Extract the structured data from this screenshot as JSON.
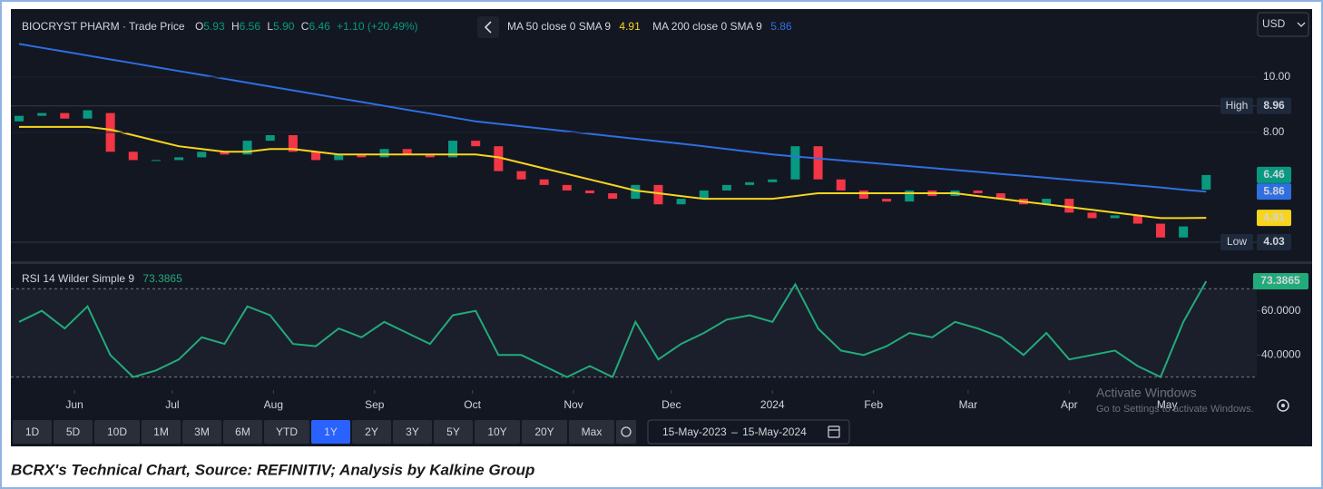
{
  "header": {
    "title": "BIOCRYST PHARM · Trade Price",
    "ohlc": [
      {
        "key": "O",
        "value": "5.93"
      },
      {
        "key": "H",
        "value": "6.56"
      },
      {
        "key": "L",
        "value": "5.90"
      },
      {
        "key": "C",
        "value": "6.46"
      }
    ],
    "change": "+1.10 (+20.49%)"
  },
  "currency": "USD",
  "toolbar": {
    "ranges": [
      "1D",
      "5D",
      "10D",
      "1M",
      "3M",
      "6M",
      "YTD",
      "1Y",
      "2Y",
      "3Y",
      "5Y",
      "10Y",
      "20Y",
      "Max"
    ],
    "active": "1Y",
    "date_from": "15-May-2023",
    "date_sep": "–",
    "date_to": "15-May-2024"
  },
  "watermark": [
    "Activate Windows",
    "Go to Settings to activate Windows."
  ],
  "caption": "BCRX's Technical Chart, Source: REFINITIV; Analysis by Kalkine Group",
  "chart_data": [
    {
      "type": "candlestick",
      "x": [
        0,
        7,
        14,
        21,
        28,
        35,
        42,
        49,
        56,
        63,
        70,
        77,
        84,
        91,
        98,
        105,
        112,
        119,
        126,
        133,
        140,
        147,
        154,
        161,
        168,
        175,
        182,
        189,
        196,
        203,
        210,
        217,
        224,
        231,
        238,
        245,
        252,
        259,
        266,
        273,
        280,
        287,
        294,
        301,
        308,
        315,
        322,
        329,
        336,
        343,
        350,
        357,
        364
      ],
      "open": [
        8.4,
        8.6,
        8.7,
        8.5,
        8.7,
        7.3,
        7.0,
        7.0,
        7.1,
        7.3,
        7.2,
        7.7,
        7.9,
        7.3,
        7.0,
        7.2,
        7.1,
        7.4,
        7.2,
        7.1,
        7.7,
        7.5,
        6.6,
        6.3,
        6.1,
        5.9,
        5.8,
        5.6,
        6.1,
        5.4,
        5.6,
        5.9,
        6.1,
        6.2,
        6.3,
        7.5,
        6.3,
        5.9,
        5.6,
        5.5,
        5.9,
        5.7,
        5.9,
        5.8,
        5.6,
        5.4,
        5.6,
        5.1,
        4.9,
        5.0,
        4.7,
        4.2,
        5.93
      ],
      "close": [
        8.6,
        8.7,
        8.5,
        8.8,
        7.3,
        7.0,
        7.0,
        7.1,
        7.3,
        7.2,
        7.7,
        7.9,
        7.3,
        7.0,
        7.2,
        7.1,
        7.4,
        7.2,
        7.1,
        7.7,
        7.5,
        6.6,
        6.3,
        6.1,
        5.9,
        5.8,
        5.6,
        6.1,
        5.4,
        5.6,
        5.9,
        6.1,
        6.2,
        6.3,
        7.5,
        6.3,
        5.9,
        5.6,
        5.5,
        5.9,
        5.7,
        5.9,
        5.8,
        5.6,
        5.4,
        5.6,
        5.1,
        4.9,
        5.0,
        4.7,
        4.2,
        4.6,
        6.46
      ],
      "up_color": "#089981",
      "down_color": "#f23645",
      "series": [
        {
          "name": "MA 50 close 0 SMA 9",
          "color": "#f7d51d",
          "values": [
            8.2,
            8.2,
            8.2,
            8.2,
            8.1,
            7.9,
            7.7,
            7.5,
            7.4,
            7.3,
            7.3,
            7.4,
            7.4,
            7.3,
            7.2,
            7.2,
            7.2,
            7.2,
            7.2,
            7.2,
            7.2,
            7.1,
            6.9,
            6.7,
            6.5,
            6.3,
            6.1,
            5.9,
            5.8,
            5.7,
            5.6,
            5.6,
            5.6,
            5.6,
            5.7,
            5.8,
            5.8,
            5.8,
            5.8,
            5.8,
            5.8,
            5.8,
            5.7,
            5.6,
            5.5,
            5.4,
            5.3,
            5.2,
            5.1,
            5.0,
            4.9,
            4.9,
            4.91
          ]
        },
        {
          "name": "MA 200 close 0 SMA 9",
          "color": "#2f6fe0",
          "values": [
            11.2,
            11.06,
            10.92,
            10.78,
            10.64,
            10.5,
            10.36,
            10.22,
            10.08,
            9.94,
            9.8,
            9.66,
            9.52,
            9.38,
            9.24,
            9.1,
            8.96,
            8.82,
            8.68,
            8.54,
            8.4,
            8.31,
            8.22,
            8.13,
            8.04,
            7.95,
            7.86,
            7.77,
            7.68,
            7.59,
            7.5,
            7.4,
            7.3,
            7.2,
            7.13,
            7.06,
            6.99,
            6.92,
            6.85,
            6.78,
            6.71,
            6.64,
            6.57,
            6.5,
            6.43,
            6.36,
            6.29,
            6.22,
            6.15,
            6.08,
            6.01,
            5.93,
            5.86
          ]
        }
      ],
      "markers": [
        {
          "label": "High",
          "value": 8.96
        },
        {
          "label": "Low",
          "value": 4.03
        }
      ],
      "xlim": [
        -2.5,
        379.5
      ],
      "ylim": [
        3.34,
        12.46
      ],
      "yticks": [
        {
          "value": 8,
          "label": "8.00"
        },
        {
          "value": 10,
          "label": "10.00"
        }
      ]
    },
    {
      "type": "line",
      "x": [
        0,
        7,
        14,
        21,
        28,
        35,
        42,
        49,
        56,
        63,
        70,
        77,
        84,
        91,
        98,
        105,
        112,
        119,
        126,
        133,
        140,
        147,
        154,
        161,
        168,
        175,
        182,
        189,
        196,
        203,
        210,
        217,
        224,
        231,
        238,
        245,
        252,
        259,
        266,
        273,
        280,
        287,
        294,
        301,
        308,
        315,
        322,
        329,
        336,
        343,
        350,
        357,
        364
      ],
      "series": [
        {
          "name": "RSI 14 Wilder Simple 9",
          "color": "#22ab7a",
          "values": [
            55,
            60,
            52,
            62,
            40,
            30,
            33,
            38,
            48,
            45,
            62,
            58,
            45,
            44,
            52,
            48,
            55,
            50,
            45,
            58,
            60,
            40,
            40,
            35,
            30,
            35,
            30,
            55,
            38,
            45,
            50,
            56,
            58,
            55,
            72,
            52,
            42,
            40,
            44,
            50,
            48,
            55,
            52,
            48,
            40,
            50,
            38,
            40,
            42,
            35,
            30,
            55,
            73.3865
          ]
        }
      ],
      "levels": [
        70,
        30
      ],
      "xlim": [
        -2.5,
        379.5
      ],
      "ylim": [
        24.1,
        81.2
      ],
      "yticks": [
        {
          "value": 40,
          "label": "40.0000"
        },
        {
          "value": 60,
          "label": "60.0000"
        }
      ],
      "xticks": [
        {
          "value": 17,
          "label": "Jun"
        },
        {
          "value": 47,
          "label": "Jul"
        },
        {
          "value": 78,
          "label": "Aug"
        },
        {
          "value": 109,
          "label": "Sep"
        },
        {
          "value": 139,
          "label": "Oct"
        },
        {
          "value": 170,
          "label": "Nov"
        },
        {
          "value": 200,
          "label": "Dec"
        },
        {
          "value": 231,
          "label": "2024"
        },
        {
          "value": 262,
          "label": "Feb"
        },
        {
          "value": 291,
          "label": "Mar"
        },
        {
          "value": 322,
          "label": "Apr"
        },
        {
          "value": 352,
          "label": "May"
        }
      ]
    }
  ]
}
